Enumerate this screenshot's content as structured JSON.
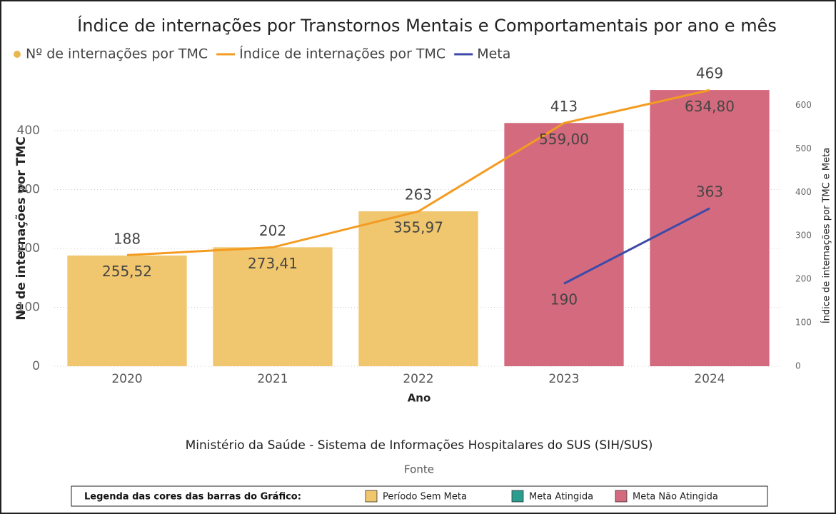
{
  "chart_data": {
    "type": "bar",
    "title": "Índice de internações por Transtornos Mentais e Comportamentais por ano e mês",
    "x_label": "Ano",
    "y_label": "Nº de internações por TMC",
    "y2_label": "Índice de internações por TMC e Meta",
    "categories": [
      "2020",
      "2021",
      "2022",
      "2023",
      "2024"
    ],
    "series": [
      {
        "name": "Nº de internações por TMC",
        "type": "bar",
        "color": "#e8b84f",
        "bar_colors": [
          "#f0c66e",
          "#f0c66e",
          "#f0c66e",
          "#d46a7e",
          "#d46a7e"
        ],
        "values": [
          188,
          202,
          263,
          413,
          469
        ]
      },
      {
        "name": "Índice de internações por TMC",
        "type": "line",
        "axis": "y2",
        "color": "#f39c21",
        "values": [
          255.52,
          273.41,
          355.97,
          559.0,
          634.8
        ],
        "value_labels": [
          "255,52",
          "273,41",
          "355,97",
          "559,00",
          "634,80"
        ]
      },
      {
        "name": "Meta",
        "type": "line",
        "axis": "y2",
        "color": "#3c4aa8",
        "values": [
          null,
          null,
          null,
          190,
          363
        ]
      }
    ],
    "ylim": [
      0,
      480
    ],
    "yticks": [
      0,
      100,
      200,
      300,
      400
    ],
    "y2lim": [
      0,
      650
    ],
    "y2ticks": [
      0,
      100,
      200,
      300,
      400,
      500,
      600
    ],
    "grid": true,
    "source": "Ministério da Saúde - Sistema de Informações Hospitalares do SUS (SIH/SUS)",
    "source_label": "Fonte",
    "color_legend": {
      "title": "Legenda das cores das barras do Gráfico:",
      "items": [
        {
          "label": "Período Sem Meta",
          "color": "#f0c66e"
        },
        {
          "label": "Meta Atingida",
          "color": "#2a9d8f"
        },
        {
          "label": "Meta Não Atingida",
          "color": "#d46a7e"
        }
      ]
    }
  }
}
